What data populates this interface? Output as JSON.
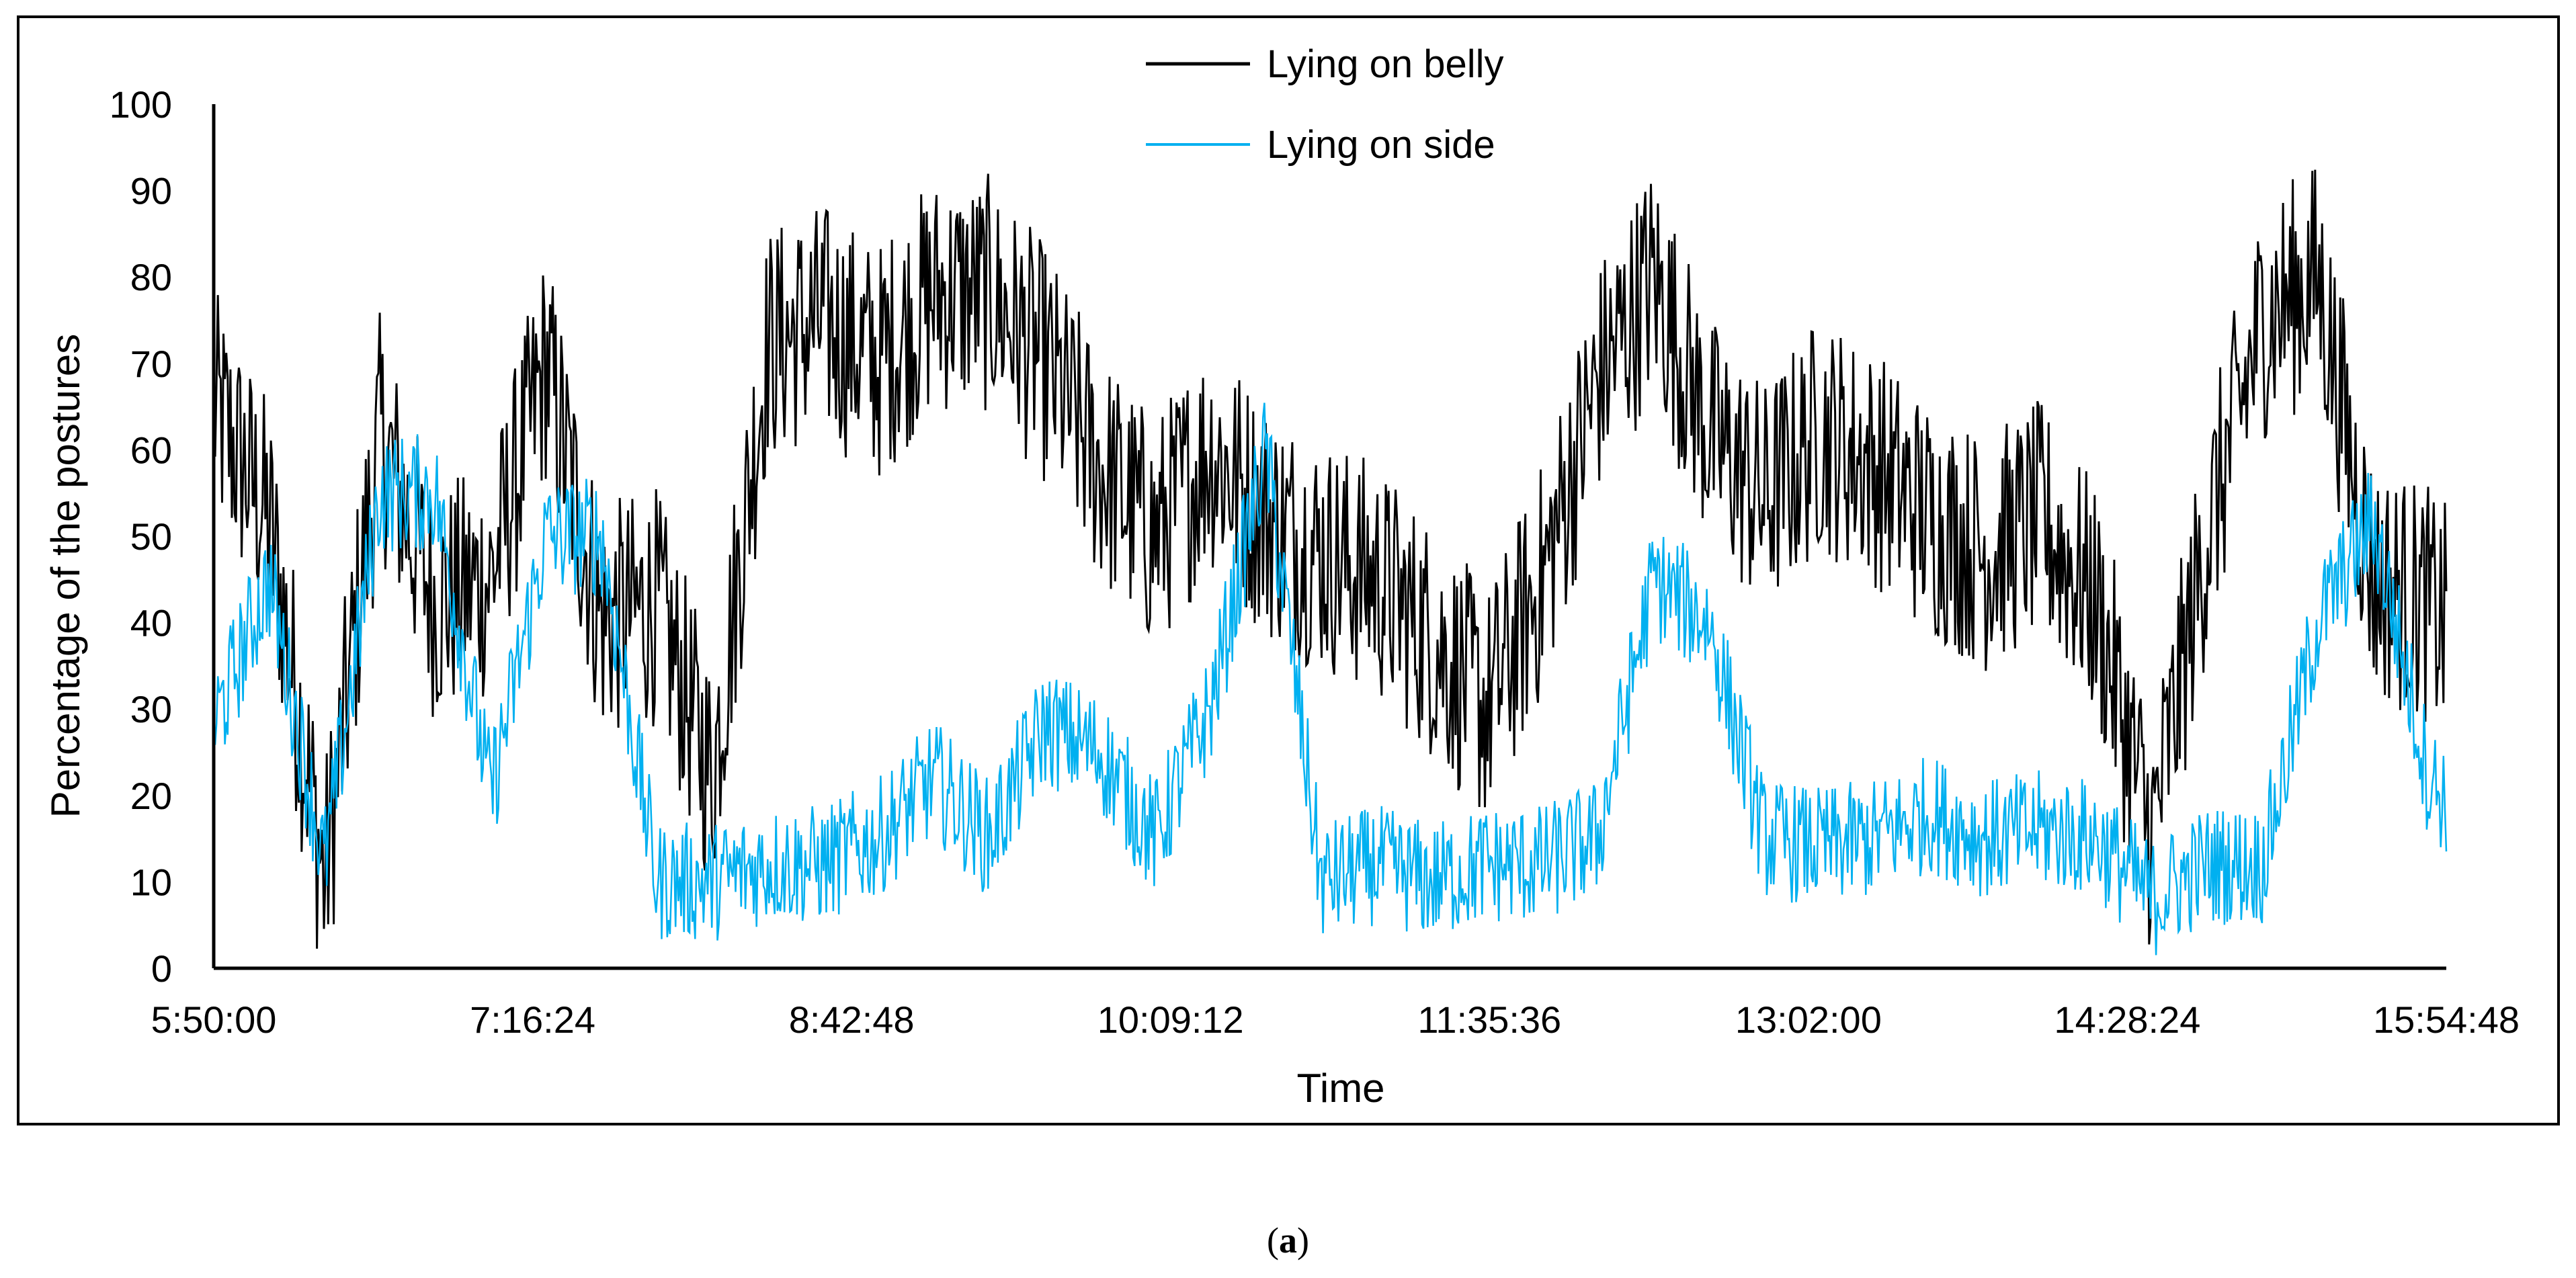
{
  "figure": {
    "panel_label_open": "(",
    "panel_label_letter": "a",
    "panel_label_close": ")"
  },
  "chart_data": {
    "type": "line",
    "title": "",
    "xlabel": "Time",
    "ylabel": "Percentage of the postures",
    "ylim": [
      0,
      100
    ],
    "yticks": [
      0,
      10,
      20,
      30,
      40,
      50,
      60,
      70,
      80,
      90,
      100
    ],
    "xlim": [
      "5:50:00",
      "15:54:48"
    ],
    "xtick_labels": [
      "5:50:00",
      "7:16:24",
      "8:42:48",
      "10:09:12",
      "11:35:36",
      "13:02:00",
      "14:28:24",
      "15:54:48"
    ],
    "grid": false,
    "legend_position": "top-center",
    "series": [
      {
        "name": "Lying on belly",
        "color": "#000000",
        "x": [
          "5:50",
          "6:05",
          "6:20",
          "6:35",
          "6:50",
          "7:05",
          "7:20",
          "7:35",
          "7:50",
          "8:05",
          "8:20",
          "8:35",
          "8:50",
          "9:05",
          "9:20",
          "9:35",
          "9:50",
          "10:05",
          "10:20",
          "10:35",
          "10:50",
          "11:05",
          "11:20",
          "11:35",
          "11:50",
          "12:05",
          "12:20",
          "12:35",
          "12:50",
          "13:05",
          "13:20",
          "13:35",
          "13:50",
          "14:05",
          "14:20",
          "14:35",
          "14:50",
          "15:05",
          "15:20",
          "15:35",
          "15:50",
          "15:54"
        ],
        "values": [
          65,
          52,
          10,
          62,
          42,
          45,
          70,
          40,
          42,
          22,
          72,
          75,
          70,
          78,
          78,
          70,
          58,
          50,
          60,
          52,
          48,
          45,
          38,
          30,
          45,
          68,
          80,
          62,
          54,
          62,
          58,
          52,
          48,
          52,
          42,
          15,
          50,
          75,
          80,
          45,
          42,
          40
        ]
      },
      {
        "name": "Lying on side",
        "color": "#00B0F0",
        "x": [
          "5:50",
          "6:05",
          "6:20",
          "6:35",
          "6:50",
          "7:05",
          "7:20",
          "7:35",
          "7:50",
          "8:05",
          "8:20",
          "8:35",
          "8:50",
          "9:05",
          "9:20",
          "9:35",
          "9:50",
          "10:05",
          "10:20",
          "10:35",
          "10:50",
          "11:05",
          "11:20",
          "11:35",
          "11:50",
          "12:05",
          "12:20",
          "12:35",
          "12:50",
          "13:05",
          "13:20",
          "13:35",
          "13:50",
          "14:05",
          "14:20",
          "14:35",
          "14:50",
          "15:05",
          "15:20",
          "15:35",
          "15:50",
          "15:54"
        ],
        "values": [
          28,
          45,
          12,
          55,
          55,
          20,
          50,
          50,
          10,
          10,
          12,
          12,
          15,
          22,
          15,
          28,
          25,
          15,
          30,
          60,
          10,
          12,
          10,
          12,
          12,
          15,
          45,
          40,
          15,
          14,
          15,
          18,
          15,
          16,
          15,
          8,
          12,
          12,
          40,
          52,
          22,
          20
        ]
      }
    ]
  }
}
